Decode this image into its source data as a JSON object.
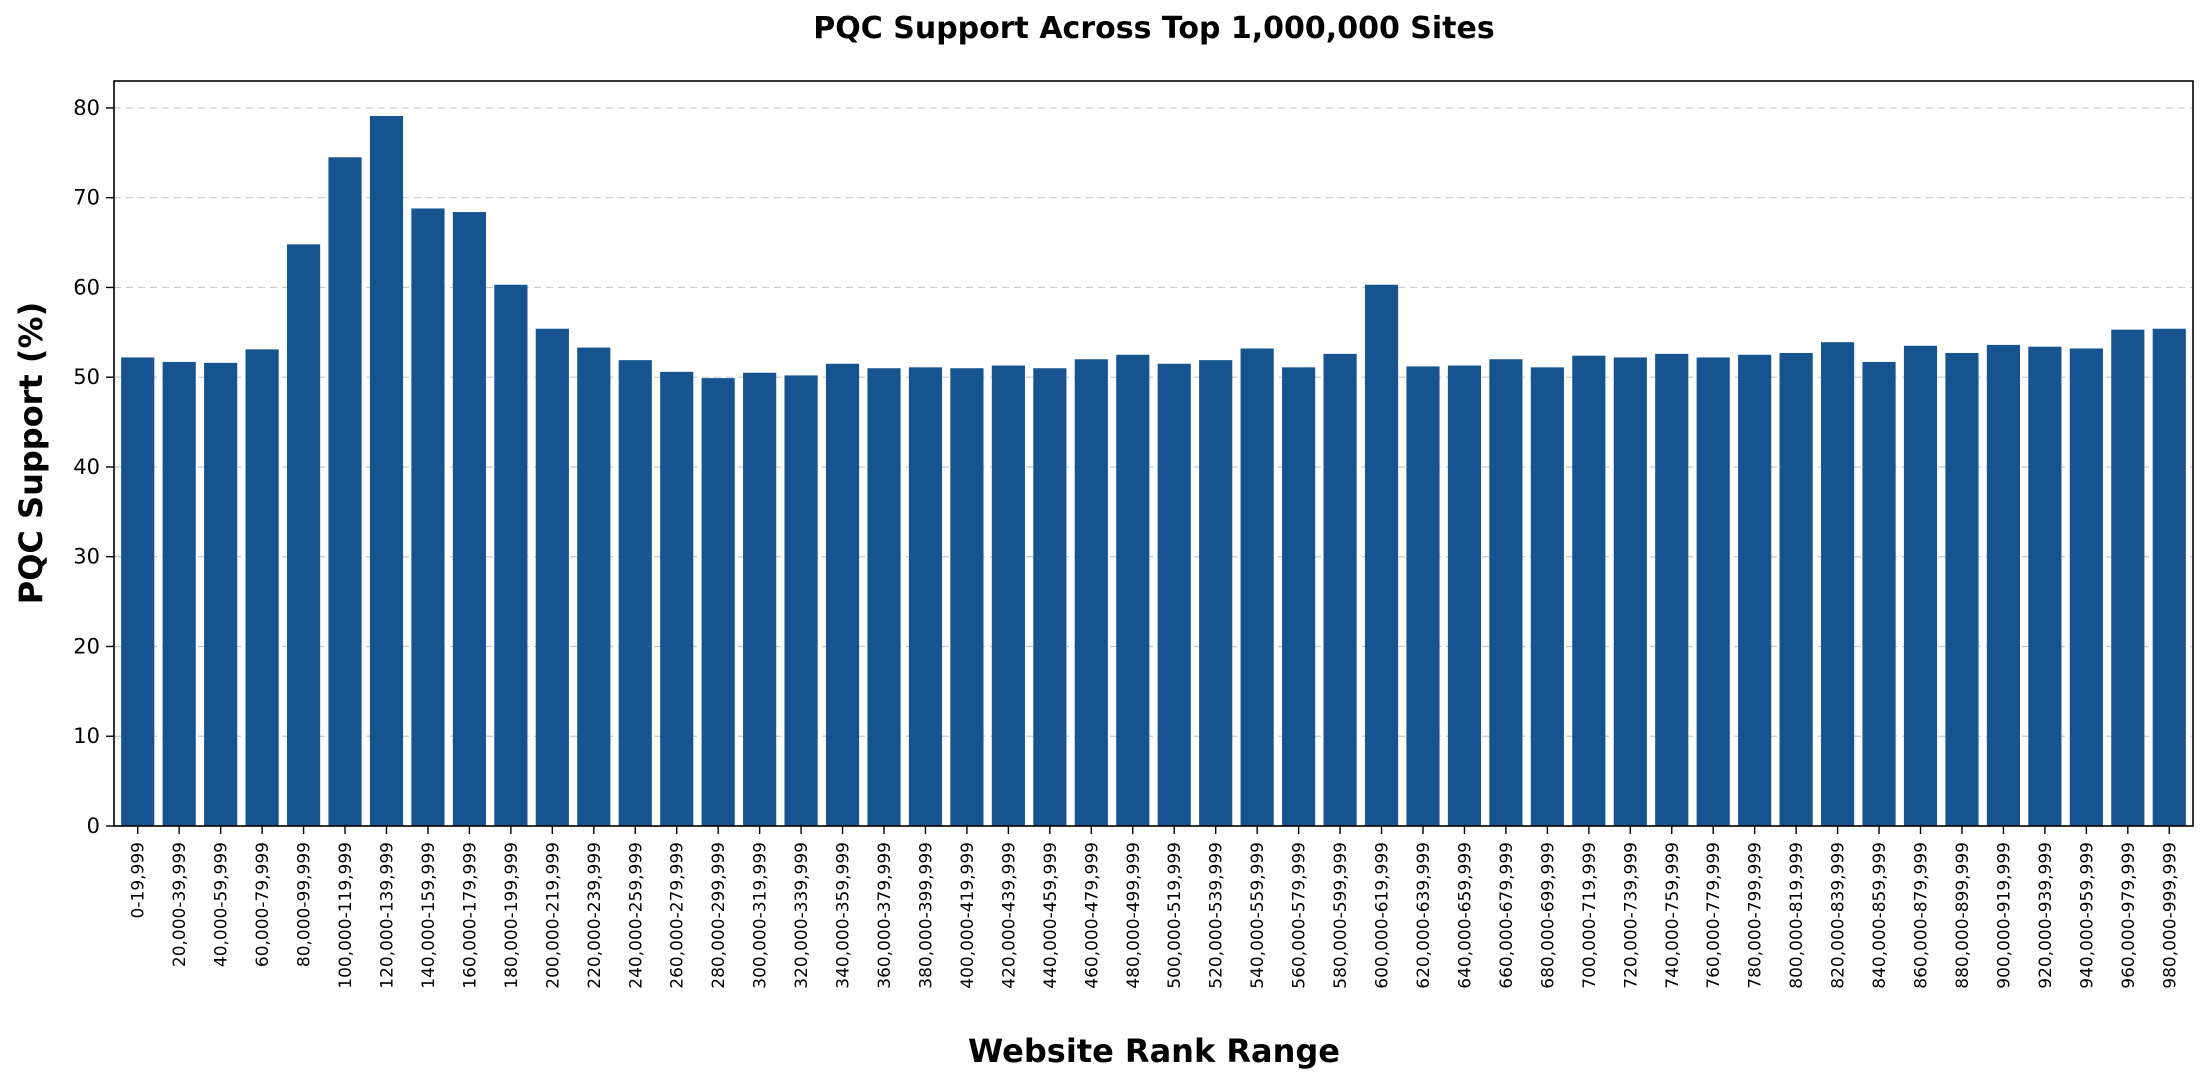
{
  "chart_data": {
    "type": "bar",
    "title": "PQC Support Across Top 1,000,000 Sites",
    "xlabel": "Website Rank Range",
    "ylabel": "PQC Support (%)",
    "ylim": [
      0,
      83
    ],
    "yticks": [
      "0",
      "10",
      "20",
      "30",
      "40",
      "50",
      "60",
      "70",
      "80"
    ],
    "grid": "horizontal dashed",
    "bar_color": "#17548f",
    "categories": [
      "0-19,999",
      "20,000-39,999",
      "40,000-59,999",
      "60,000-79,999",
      "80,000-99,999",
      "100,000-119,999",
      "120,000-139,999",
      "140,000-159,999",
      "160,000-179,999",
      "180,000-199,999",
      "200,000-219,999",
      "220,000-239,999",
      "240,000-259,999",
      "260,000-279,999",
      "280,000-299,999",
      "300,000-319,999",
      "320,000-339,999",
      "340,000-359,999",
      "360,000-379,999",
      "380,000-399,999",
      "400,000-419,999",
      "420,000-439,999",
      "440,000-459,999",
      "460,000-479,999",
      "480,000-499,999",
      "500,000-519,999",
      "520,000-539,999",
      "540,000-559,999",
      "560,000-579,999",
      "580,000-599,999",
      "600,000-619,999",
      "620,000-639,999",
      "640,000-659,999",
      "660,000-679,999",
      "680,000-699,999",
      "700,000-719,999",
      "720,000-739,999",
      "740,000-759,999",
      "760,000-779,999",
      "780,000-799,999",
      "800,000-819,999",
      "820,000-839,999",
      "840,000-859,999",
      "860,000-879,999",
      "880,000-899,999",
      "900,000-919,999",
      "920,000-939,999",
      "940,000-959,999",
      "960,000-979,999",
      "980,000-999,999"
    ],
    "values": [
      52.2,
      51.7,
      51.6,
      53.1,
      64.8,
      74.5,
      79.1,
      68.8,
      68.4,
      60.3,
      55.4,
      53.3,
      51.9,
      50.6,
      49.9,
      50.5,
      50.2,
      51.5,
      51.0,
      51.1,
      51.0,
      51.3,
      51.0,
      52.0,
      52.5,
      51.5,
      51.9,
      53.2,
      51.1,
      52.6,
      60.3,
      51.2,
      51.3,
      52.0,
      51.1,
      52.4,
      52.2,
      52.6,
      52.2,
      52.5,
      52.7,
      53.9,
      51.7,
      53.5,
      52.7,
      53.6,
      53.4,
      53.2,
      55.3,
      55.4
    ]
  }
}
